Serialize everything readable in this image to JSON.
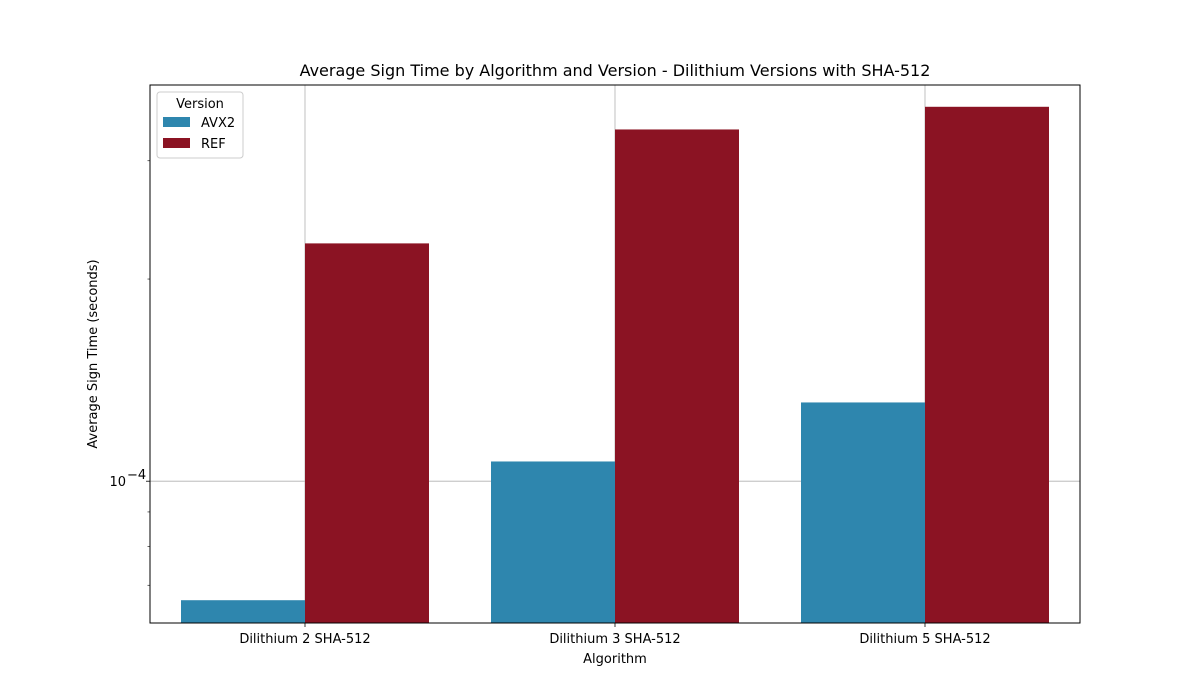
{
  "chart_data": {
    "type": "bar",
    "title": "Average Sign Time by Algorithm and Version - Dilithium Versions with SHA-512",
    "xlabel": "Algorithm",
    "ylabel": "Average Sign Time (seconds)",
    "yscale": "log",
    "ylim": [
      6.15e-05,
      0.000389
    ],
    "yticks": [
      {
        "value": 0.0001,
        "base": "10",
        "exponent": "−4"
      }
    ],
    "grid": true,
    "categories": [
      "Dilithium 2 SHA-512",
      "Dilithium 3 SHA-512",
      "Dilithium 5 SHA-512"
    ],
    "legend": {
      "title": "Version",
      "position": "top-left"
    },
    "series": [
      {
        "name": "AVX2",
        "color": "#2e86ae",
        "values": [
          6.65e-05,
          0.000107,
          0.000131
        ]
      },
      {
        "name": "REF",
        "color": "#8b1323",
        "values": [
          0.000226,
          0.000334,
          0.000361
        ]
      }
    ]
  }
}
